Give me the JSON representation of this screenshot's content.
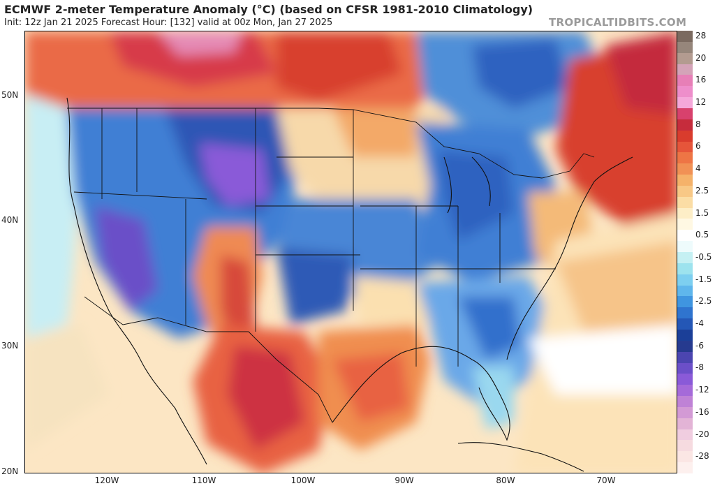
{
  "header": {
    "title": "ECMWF 2-meter Temperature Anomaly (°C) (based on CFSR 1981-2010 Climatology)",
    "subtitle": "Init: 12z Jan 21 2025   Forecast Hour: [132]   valid at 00z Mon, Jan 27 2025",
    "credit": "TROPICALTIDBITS.COM"
  },
  "map": {
    "latitude_labels": [
      "50N",
      "40N",
      "30N",
      "20N"
    ],
    "longitude_labels": [
      "120W",
      "110W",
      "100W",
      "90W",
      "80W",
      "70W"
    ],
    "extent": {
      "lon_min": -127.5,
      "lon_max": -62.5,
      "lat_min": 20,
      "lat_max": 55
    }
  },
  "colorbar": {
    "bins": [
      {
        "label": "28",
        "color": "#7b6a60"
      },
      {
        "label": "",
        "color": "#96867b"
      },
      {
        "label": "20",
        "color": "#b39b90"
      },
      {
        "label": "",
        "color": "#d4a3b8"
      },
      {
        "label": "16",
        "color": "#e77fb7"
      },
      {
        "label": "",
        "color": "#ee8ecb"
      },
      {
        "label": "12",
        "color": "#f5a8da"
      },
      {
        "label": "",
        "color": "#d8416d"
      },
      {
        "label": "8",
        "color": "#c62c3c"
      },
      {
        "label": "",
        "color": "#d93c2d"
      },
      {
        "label": "6",
        "color": "#e6553a"
      },
      {
        "label": "",
        "color": "#ee7545"
      },
      {
        "label": "4",
        "color": "#f19155"
      },
      {
        "label": "",
        "color": "#f5b26a"
      },
      {
        "label": "2.5",
        "color": "#f8c886"
      },
      {
        "label": "",
        "color": "#fbdda5"
      },
      {
        "label": "1.5",
        "color": "#fdeec7"
      },
      {
        "label": "",
        "color": "#fff8e3"
      },
      {
        "label": "0.5",
        "color": "#ffffff"
      },
      {
        "label": "",
        "color": "#eefbfc"
      },
      {
        "label": "-0.5",
        "color": "#c5f0f3"
      },
      {
        "label": "",
        "color": "#9de3ee"
      },
      {
        "label": "-1.5",
        "color": "#7dcff0"
      },
      {
        "label": "",
        "color": "#5fb6ec"
      },
      {
        "label": "-2.5",
        "color": "#3f95e0"
      },
      {
        "label": "",
        "color": "#2f74cf"
      },
      {
        "label": "-4",
        "color": "#2457b6"
      },
      {
        "label": "",
        "color": "#1b3f98"
      },
      {
        "label": "-6",
        "color": "#263a8f"
      },
      {
        "label": "",
        "color": "#4b45b0"
      },
      {
        "label": "-8",
        "color": "#6b4fc8"
      },
      {
        "label": "",
        "color": "#8a5ad8"
      },
      {
        "label": "-12",
        "color": "#a56ad9"
      },
      {
        "label": "",
        "color": "#bf82d6"
      },
      {
        "label": "-16",
        "color": "#d39ad5"
      },
      {
        "label": "",
        "color": "#e3b4d6"
      },
      {
        "label": "-20",
        "color": "#f0cde0"
      },
      {
        "label": "",
        "color": "#f6dbe0"
      },
      {
        "label": "-28",
        "color": "#fbe6e4"
      },
      {
        "label": "",
        "color": "#fdf0ee"
      }
    ]
  }
}
